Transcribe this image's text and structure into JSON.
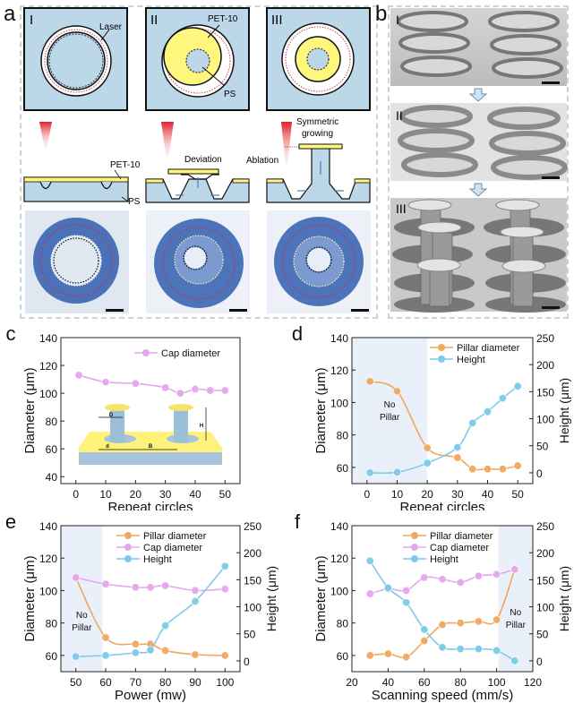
{
  "panels": {
    "a": {
      "letter": "a",
      "schematics": [
        {
          "roman": "I",
          "labels": [
            "Laser"
          ]
        },
        {
          "roman": "II",
          "labels": [
            "PET-10",
            "PS"
          ]
        },
        {
          "roman": "III",
          "labels": []
        }
      ],
      "cross_sections": [
        {
          "labels": [
            "PET-10",
            "PS"
          ]
        },
        {
          "labels": [
            "Deviation"
          ]
        },
        {
          "labels": [
            "Symmetric",
            "growing",
            "Ablation"
          ]
        }
      ]
    },
    "b": {
      "letter": "b",
      "sem_images": [
        {
          "roman": "I"
        },
        {
          "roman": "II"
        },
        {
          "roman": "III"
        }
      ]
    }
  },
  "colors": {
    "pillar": "#f0a860",
    "cap": "#e6a6ee",
    "height": "#7ccbe8",
    "no_pillar_shade": "#eaf0fa",
    "pet": "#fff27a",
    "ps": "#bcd8e8"
  },
  "chart_data": [
    {
      "id": "c",
      "letter": "c",
      "type": "line",
      "xlabel": "Repeat circles",
      "ylabel": "Diameter (μm)",
      "xlim": [
        -5,
        55
      ],
      "ylim": [
        35,
        140
      ],
      "xticks": [
        0,
        10,
        20,
        30,
        40,
        50
      ],
      "yticks": [
        40,
        60,
        80,
        100,
        120,
        140
      ],
      "legend": "top-right",
      "inset_labels": [
        "D",
        "d",
        "B",
        "H"
      ],
      "series": [
        {
          "name": "Cap diameter",
          "color_key": "cap",
          "axis": "left",
          "x": [
            1,
            10,
            20,
            30,
            35,
            40,
            45,
            50
          ],
          "y": [
            113,
            108,
            107,
            104,
            100,
            103,
            102,
            102
          ]
        }
      ]
    },
    {
      "id": "d",
      "letter": "d",
      "type": "line",
      "xlabel": "Repeat circles",
      "ylabel": "Diameter (μm)",
      "y2label": "Height (μm)",
      "xlim": [
        -5,
        55
      ],
      "ylim": [
        50,
        140
      ],
      "y2lim": [
        -20,
        250
      ],
      "xticks": [
        0,
        10,
        20,
        30,
        40,
        50
      ],
      "yticks": [
        60,
        80,
        100,
        120,
        140
      ],
      "y2ticks": [
        0,
        50,
        100,
        150,
        200,
        250
      ],
      "legend": "top-right",
      "shaded_region": {
        "x": [
          -5,
          20
        ],
        "label": [
          "No",
          "Pillar"
        ]
      },
      "series": [
        {
          "name": "Pillar diameter",
          "color_key": "pillar",
          "axis": "left",
          "x": [
            1,
            10,
            20,
            30,
            35,
            40,
            45,
            50
          ],
          "y": [
            113,
            107,
            72,
            66,
            59,
            59,
            59,
            61
          ]
        },
        {
          "name": "Height",
          "color_key": "height",
          "axis": "right",
          "x": [
            1,
            10,
            20,
            30,
            35,
            40,
            45,
            50
          ],
          "y": [
            0,
            1,
            18,
            47,
            92,
            113,
            138,
            160
          ]
        }
      ]
    },
    {
      "id": "e",
      "letter": "e",
      "type": "line",
      "xlabel": "Power (mw)",
      "ylabel": "Diameter (μm)",
      "y2label": "Height (μm)",
      "xlim": [
        45,
        105
      ],
      "ylim": [
        50,
        140
      ],
      "y2lim": [
        -20,
        250
      ],
      "xticks": [
        50,
        60,
        70,
        80,
        90,
        100
      ],
      "yticks": [
        60,
        80,
        100,
        120,
        140
      ],
      "y2ticks": [
        0,
        50,
        100,
        150,
        200,
        250
      ],
      "legend": "top-center",
      "shaded_region": {
        "x": [
          45,
          59
        ],
        "label": [
          "No",
          "Pillar"
        ]
      },
      "series": [
        {
          "name": "Pillar diameter",
          "color_key": "pillar",
          "axis": "left",
          "x": [
            50,
            60,
            70,
            75,
            80,
            90,
            100
          ],
          "y": [
            108,
            71,
            67,
            67,
            63,
            60.5,
            60
          ]
        },
        {
          "name": "Cap diameter",
          "color_key": "cap",
          "axis": "left",
          "x": [
            50,
            60,
            70,
            75,
            80,
            90,
            100
          ],
          "y": [
            108,
            104,
            102,
            102,
            103,
            100,
            101
          ]
        },
        {
          "name": "Height",
          "color_key": "height",
          "axis": "right",
          "x": [
            50,
            60,
            70,
            75,
            80,
            90,
            100
          ],
          "y": [
            8,
            10,
            15,
            20,
            65,
            110,
            175
          ]
        }
      ]
    },
    {
      "id": "f",
      "letter": "f",
      "type": "line",
      "xlabel": "Scanning speed (mm/s)",
      "ylabel": "Diameter (μm)",
      "y2label": "Height (μm)",
      "xlim": [
        20,
        120
      ],
      "ylim": [
        50,
        140
      ],
      "y2lim": [
        -20,
        250
      ],
      "xticks": [
        20,
        40,
        60,
        80,
        100,
        120
      ],
      "yticks": [
        60,
        80,
        100,
        120,
        140
      ],
      "y2ticks": [
        0,
        50,
        100,
        150,
        200,
        250
      ],
      "legend": "top-center",
      "shaded_region": {
        "x": [
          101,
          120
        ],
        "label": [
          "No",
          "Pillar"
        ]
      },
      "series": [
        {
          "name": "Pillar diameter",
          "color_key": "pillar",
          "axis": "left",
          "x": [
            30,
            40,
            50,
            60,
            70,
            80,
            90,
            100,
            110
          ],
          "y": [
            60,
            61,
            59,
            69,
            79,
            80,
            81,
            82,
            113
          ]
        },
        {
          "name": "Cap diameter",
          "color_key": "cap",
          "axis": "left",
          "x": [
            30,
            40,
            50,
            60,
            70,
            80,
            90,
            100,
            110
          ],
          "y": [
            98,
            101,
            100,
            108,
            107,
            105,
            109,
            110,
            113
          ]
        },
        {
          "name": "Height",
          "color_key": "height",
          "axis": "right",
          "x": [
            30,
            40,
            50,
            60,
            70,
            80,
            90,
            100,
            110
          ],
          "y": [
            185,
            135,
            108,
            58,
            25,
            22,
            22,
            19,
            0
          ]
        }
      ]
    }
  ]
}
